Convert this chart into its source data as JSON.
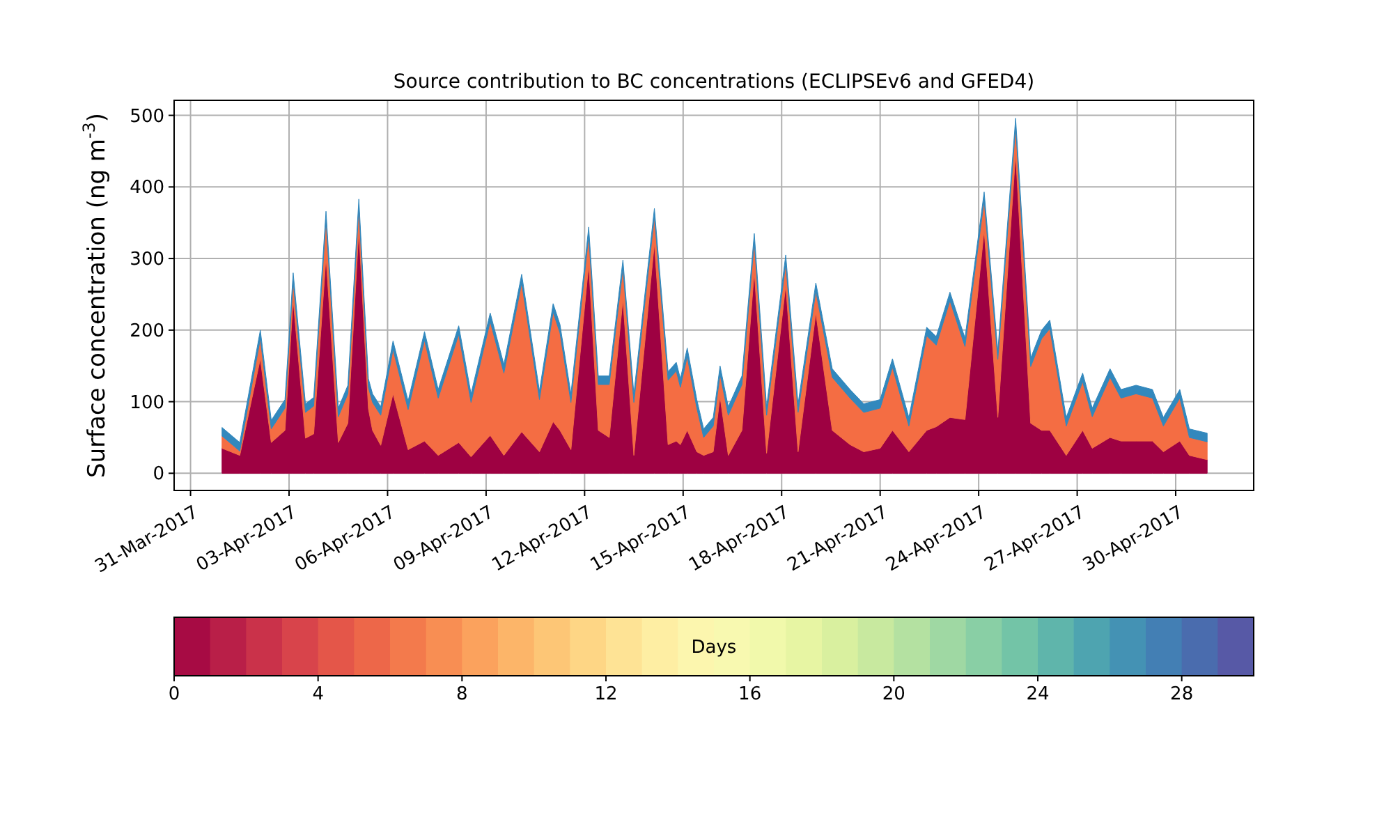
{
  "chart_data": {
    "type": "area",
    "stacked": true,
    "title": "Source contribution to BC concentrations (ECLIPSEv6 and GFED4)",
    "ylabel": "Surface concentration (ng m$^{-3}$)",
    "clabel": "Days",
    "clim": [
      0,
      30
    ],
    "cticks": [
      0,
      4,
      8,
      12,
      16,
      20,
      24,
      28
    ],
    "grid": true,
    "x": [
      "2017-03-31T23:00",
      "2017-04-01T12:00",
      "2017-04-02T03:00",
      "2017-04-02T11:00",
      "2017-04-02T21:00",
      "2017-04-03T03:00",
      "2017-04-03T12:00",
      "2017-04-03T18:00",
      "2017-04-04T03:00",
      "2017-04-04T12:00",
      "2017-04-04T19:00",
      "2017-04-05T03:00",
      "2017-04-05T10:00",
      "2017-04-05T13:00",
      "2017-04-05T19:00",
      "2017-04-06T04:00",
      "2017-04-06T15:00",
      "2017-04-07T03:00",
      "2017-04-07T13:00",
      "2017-04-08T04:00",
      "2017-04-08T13:00",
      "2017-04-09T03:00",
      "2017-04-09T13:00",
      "2017-04-10T02:00",
      "2017-04-10T15:00",
      "2017-04-11T01:00",
      "2017-04-11T06:00",
      "2017-04-11T14:00",
      "2017-04-12T03:00",
      "2017-04-12T10:00",
      "2017-04-12T18:00",
      "2017-04-13T04:00",
      "2017-04-13T12:00",
      "2017-04-14T03:00",
      "2017-04-14T13:00",
      "2017-04-14T19:00",
      "2017-04-14T22:00",
      "2017-04-15T03:00",
      "2017-04-15T10:00",
      "2017-04-15T15:00",
      "2017-04-15T22:00",
      "2017-04-16T03:00",
      "2017-04-16T09:00",
      "2017-04-16T19:00",
      "2017-04-17T04:00",
      "2017-04-17T13:00",
      "2017-04-18T03:00",
      "2017-04-18T12:00",
      "2017-04-19T01:00",
      "2017-04-19T13:00",
      "2017-04-20T02:00",
      "2017-04-20T12:00",
      "2017-04-21T00:00",
      "2017-04-21T09:00",
      "2017-04-21T21:00",
      "2017-04-22T10:00",
      "2017-04-22T17:00",
      "2017-04-23T03:00",
      "2017-04-23T14:00",
      "2017-04-24T04:00",
      "2017-04-24T14:00",
      "2017-04-25T03:00",
      "2017-04-25T14:00",
      "2017-04-25T22:00",
      "2017-04-26T04:00",
      "2017-04-26T16:00",
      "2017-04-27T04:00",
      "2017-04-27T11:00",
      "2017-04-28T00:00",
      "2017-04-28T08:00",
      "2017-04-28T19:00",
      "2017-04-29T07:00",
      "2017-04-29T15:00",
      "2017-04-30T03:00",
      "2017-04-30T10:00",
      "2017-04-30T23:00"
    ],
    "series": [
      {
        "color": "#9e0142",
        "values": [
          35,
          25,
          160,
          43,
          60,
          243,
          49,
          55,
          302,
          43,
          70,
          340,
          90,
          60,
          39,
          111,
          33,
          45,
          25,
          43,
          23,
          53,
          25,
          58,
          30,
          72,
          60,
          33,
          292,
          60,
          50,
          243,
          25,
          321,
          40,
          45,
          40,
          60,
          30,
          25,
          30,
          107,
          25,
          60,
          282,
          28,
          263,
          30,
          224,
          60,
          40,
          30,
          35,
          60,
          30,
          60,
          65,
          78,
          75,
          340,
          78,
          447,
          70,
          60,
          60,
          25,
          60,
          35,
          50,
          45,
          45,
          45,
          30,
          45,
          25,
          19
        ]
      },
      {
        "color": "#f46d43",
        "values": [
          17,
          6,
          28,
          19,
          31,
          25,
          36,
          39,
          52,
          36,
          41,
          31,
          30,
          39,
          42,
          62,
          56,
          141,
          80,
          151,
          76,
          159,
          115,
          208,
          73,
          153,
          136,
          66,
          40,
          64,
          74,
          43,
          74,
          37,
          90,
          98,
          80,
          103,
          61,
          25,
          36,
          31,
          56,
          64,
          41,
          53,
          30,
          55,
          30,
          74,
          65,
          55,
          56,
          88,
          36,
          132,
          114,
          163,
          102,
          41,
          81,
          37,
          79,
          128,
          142,
          41,
          68,
          44,
          84,
          60,
          66,
          60,
          36,
          60,
          25,
          25
        ]
      },
      {
        "color": "#3288bd",
        "values": [
          12,
          12,
          12,
          12,
          12,
          12,
          12,
          12,
          12,
          12,
          12,
          12,
          12,
          12,
          12,
          12,
          12,
          12,
          12,
          12,
          12,
          12,
          12,
          12,
          12,
          12,
          12,
          12,
          12,
          12,
          12,
          12,
          12,
          12,
          12,
          12,
          12,
          12,
          12,
          12,
          12,
          12,
          12,
          12,
          12,
          12,
          12,
          12,
          12,
          12,
          12,
          12,
          12,
          12,
          12,
          12,
          12,
          12,
          12,
          12,
          12,
          12,
          12,
          12,
          12,
          12,
          12,
          12,
          12,
          12,
          12,
          12,
          12,
          12,
          12,
          12
        ]
      }
    ],
    "xlim": [
      "2017-03-30T12:00",
      "2017-05-02T09:00"
    ],
    "xticks": [
      {
        "value": "2017-03-31",
        "label": "31-Mar-2017"
      },
      {
        "value": "2017-04-03",
        "label": "03-Apr-2017"
      },
      {
        "value": "2017-04-06",
        "label": "06-Apr-2017"
      },
      {
        "value": "2017-04-09",
        "label": "09-Apr-2017"
      },
      {
        "value": "2017-04-12",
        "label": "12-Apr-2017"
      },
      {
        "value": "2017-04-15",
        "label": "15-Apr-2017"
      },
      {
        "value": "2017-04-18",
        "label": "18-Apr-2017"
      },
      {
        "value": "2017-04-21",
        "label": "21-Apr-2017"
      },
      {
        "value": "2017-04-24",
        "label": "24-Apr-2017"
      },
      {
        "value": "2017-04-27",
        "label": "27-Apr-2017"
      },
      {
        "value": "2017-04-30",
        "label": "30-Apr-2017"
      }
    ],
    "ylim": [
      -24,
      521
    ],
    "yticks": [
      0,
      100,
      200,
      300,
      400,
      500
    ]
  }
}
